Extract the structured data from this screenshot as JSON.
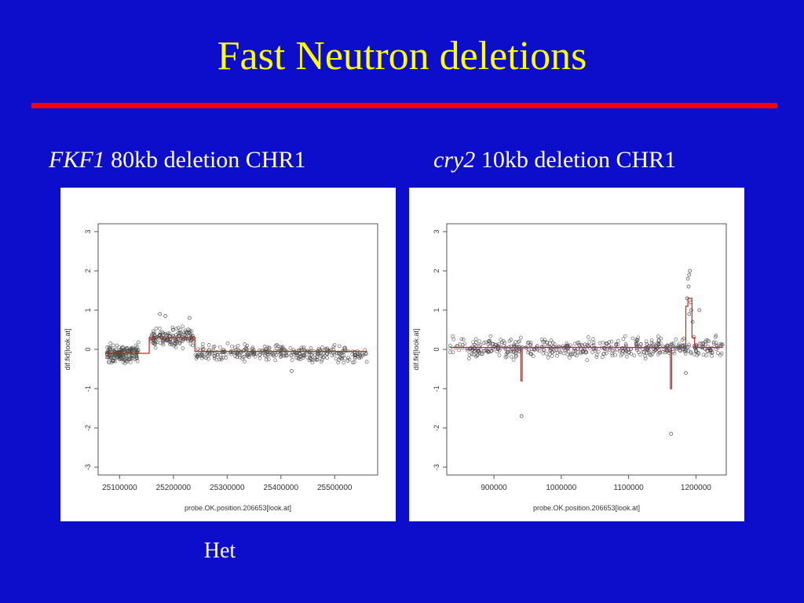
{
  "title": "Fast Neutron deletions",
  "colors": {
    "background": "#0d0dcc",
    "title": "#ffff00",
    "divider": "#ff0000",
    "caption": "#ffffff",
    "segment_line": "#cc2222",
    "points": "#444444"
  },
  "captions": {
    "left": {
      "gene": "FKF1",
      "rest": " 80kb deletion CHR1"
    },
    "right": {
      "gene": "cry2",
      "rest": " 10kb deletion CHR1"
    }
  },
  "footnote": "Het",
  "chart_data": [
    {
      "type": "scatter",
      "xlabel": "probe.OK.position.206653[look.at]",
      "ylabel": "dif.fkf[look.at]",
      "xlim": [
        25060000,
        25580000
      ],
      "ylim": [
        -3.2,
        3.2
      ],
      "xticks": [
        25100000,
        25200000,
        25300000,
        25400000,
        25500000
      ],
      "xtick_labels": [
        "25100000",
        "25200000",
        "25300000",
        "25400000",
        "25500000"
      ],
      "yticks": [
        -3,
        -2,
        -1,
        0,
        1,
        2,
        3
      ],
      "ytick_labels": [
        "-3",
        "-2",
        "-1",
        "0",
        "1",
        "2",
        "3"
      ],
      "point_clusters": [
        {
          "x": [
            25075000,
            25135000
          ],
          "y_mean": -0.1,
          "spread": 0.2,
          "n": 170
        },
        {
          "x": [
            25158000,
            25240000
          ],
          "y_mean": 0.3,
          "spread": 0.2,
          "n": 150
        },
        {
          "x": [
            25240000,
            25560000
          ],
          "y_mean": -0.1,
          "spread": 0.18,
          "n": 340
        }
      ],
      "outliers": [
        {
          "x": 25175000,
          "y": 0.9
        },
        {
          "x": 25185000,
          "y": 0.85
        },
        {
          "x": 25230000,
          "y": 0.8
        },
        {
          "x": 25420000,
          "y": -0.55
        }
      ],
      "segments": [
        {
          "x": [
            25075000,
            25155000
          ],
          "y": -0.1
        },
        {
          "x": [
            25155000,
            25240000
          ],
          "y": 0.3
        },
        {
          "x": [
            25240000,
            25560000
          ],
          "y": -0.05
        }
      ]
    },
    {
      "type": "scatter",
      "xlabel": "probe.OK.position.206653[look.at]",
      "ylabel": "dif.fkf[look.at]",
      "xlim": [
        830000,
        1245000
      ],
      "ylim": [
        -3.2,
        3.2
      ],
      "xticks": [
        900000,
        1000000,
        1100000,
        1200000
      ],
      "xtick_labels": [
        "900000",
        "1000000",
        "1100000",
        "1200000"
      ],
      "yticks": [
        -3,
        -2,
        -1,
        0,
        1,
        2,
        3
      ],
      "ytick_labels": [
        "-3",
        "-2",
        "-1",
        "0",
        "1",
        "2",
        "3"
      ],
      "point_clusters": [
        {
          "x": [
            835000,
            1240000
          ],
          "y_mean": 0.05,
          "spread": 0.22,
          "n": 520
        }
      ],
      "outliers": [
        {
          "x": 941000,
          "y": -1.7
        },
        {
          "x": 1163000,
          "y": -2.15
        },
        {
          "x": 1188000,
          "y": 1.8
        },
        {
          "x": 1190000,
          "y": 1.9
        },
        {
          "x": 1191000,
          "y": 2.0
        },
        {
          "x": 1189000,
          "y": 1.6
        },
        {
          "x": 1187000,
          "y": 1.3
        },
        {
          "x": 1192000,
          "y": 1.2
        },
        {
          "x": 1193000,
          "y": 1.0
        },
        {
          "x": 1195000,
          "y": 0.7
        },
        {
          "x": 1190000,
          "y": 0.9
        },
        {
          "x": 1205000,
          "y": 1.0
        },
        {
          "x": 1185000,
          "y": -0.6
        }
      ],
      "segments": [
        {
          "x": [
            835000,
            940000
          ],
          "y": 0.05
        },
        {
          "x": [
            940000,
            942000
          ],
          "y": -0.8
        },
        {
          "x": [
            942000,
            1162000
          ],
          "y": 0.05
        },
        {
          "x": [
            1162000,
            1164000
          ],
          "y": -1.0
        },
        {
          "x": [
            1164000,
            1185000
          ],
          "y": 0.05
        },
        {
          "x": [
            1185000,
            1188000
          ],
          "y": 1.1
        },
        {
          "x": [
            1188000,
            1194000
          ],
          "y": 1.3
        },
        {
          "x": [
            1194000,
            1198000
          ],
          "y": 0.3
        },
        {
          "x": [
            1198000,
            1240000
          ],
          "y": 0.05
        }
      ]
    }
  ]
}
